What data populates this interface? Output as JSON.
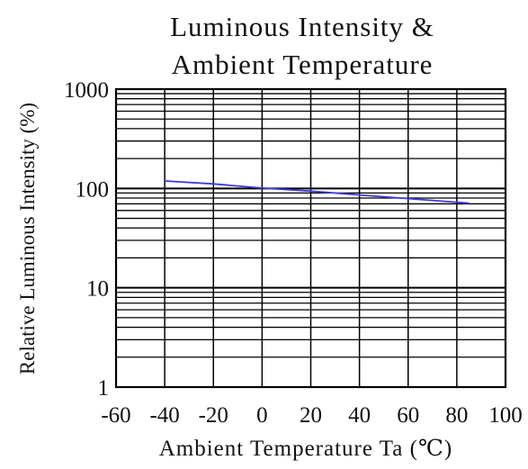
{
  "chart_data": {
    "type": "line",
    "title": [
      "Luminous Intensity &",
      "Ambient Temperature"
    ],
    "xlabel": "Ambient Temperature Ta (℃)",
    "ylabel": "Relative Luminous Intensity (%)",
    "x_ticks": [
      "-60",
      "-40",
      "-20",
      "0",
      "20",
      "40",
      "60",
      "80",
      "100"
    ],
    "y_ticks": [
      "1",
      "10",
      "100",
      "1000"
    ],
    "xlim": [
      -60,
      100
    ],
    "ylim": [
      1,
      1000
    ],
    "y_scale": "log",
    "grid": true,
    "series": [
      {
        "x": [
          -40,
          -20,
          0,
          20,
          40,
          60,
          85
        ],
        "y": [
          119,
          111,
          101,
          94,
          86,
          79,
          71
        ]
      }
    ],
    "colors": {
      "line": "#3b3bdc",
      "grid": "#000000"
    }
  }
}
